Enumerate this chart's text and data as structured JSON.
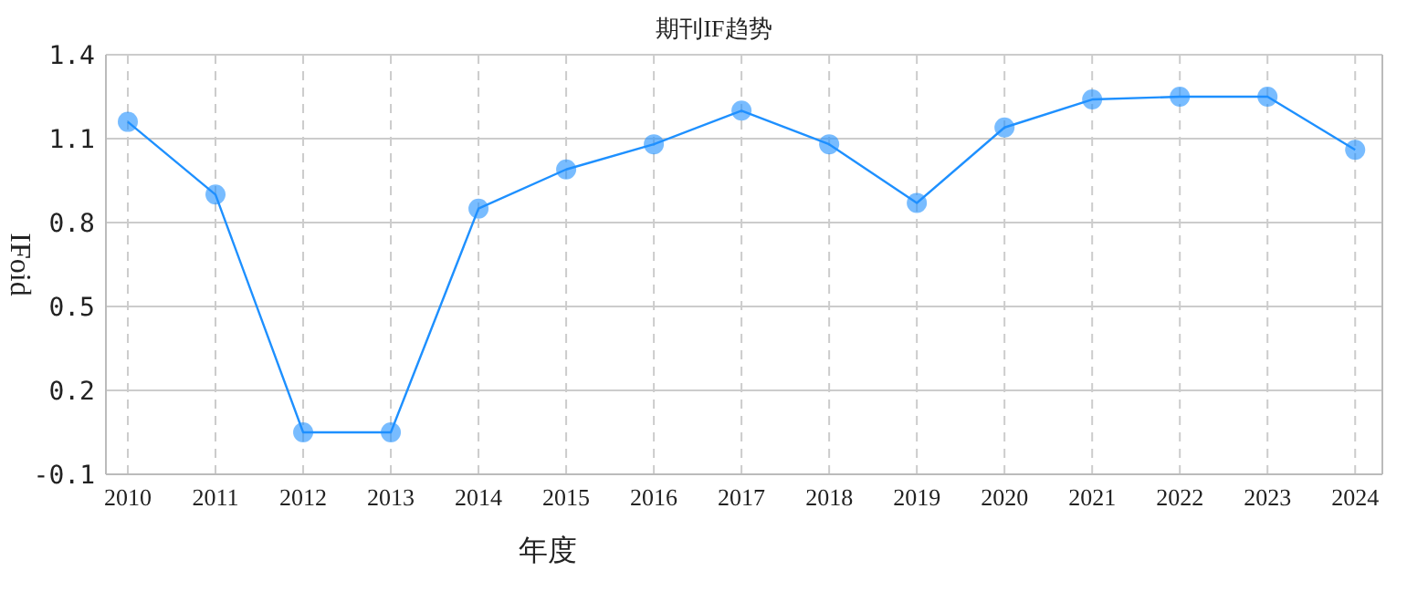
{
  "chart_data": {
    "type": "line",
    "title": "期刊IF趋势",
    "xlabel": "年度",
    "ylabel": "IFoid",
    "categories": [
      "2010",
      "2011",
      "2012",
      "2013",
      "2014",
      "2015",
      "2016",
      "2017",
      "2018",
      "2019",
      "2020",
      "2021",
      "2022",
      "2023",
      "2024"
    ],
    "series": [
      {
        "color": "#1e90ff",
        "values": [
          1.16,
          0.9,
          0.05,
          0.05,
          0.85,
          0.99,
          1.08,
          1.2,
          1.08,
          0.87,
          1.14,
          1.24,
          1.25,
          1.25,
          1.06
        ]
      }
    ],
    "ylim": [
      -0.1,
      1.4
    ],
    "yticks": [
      -0.1,
      0.2,
      0.5,
      0.8,
      1.1,
      1.4
    ],
    "grid": true,
    "marker": "circle"
  }
}
